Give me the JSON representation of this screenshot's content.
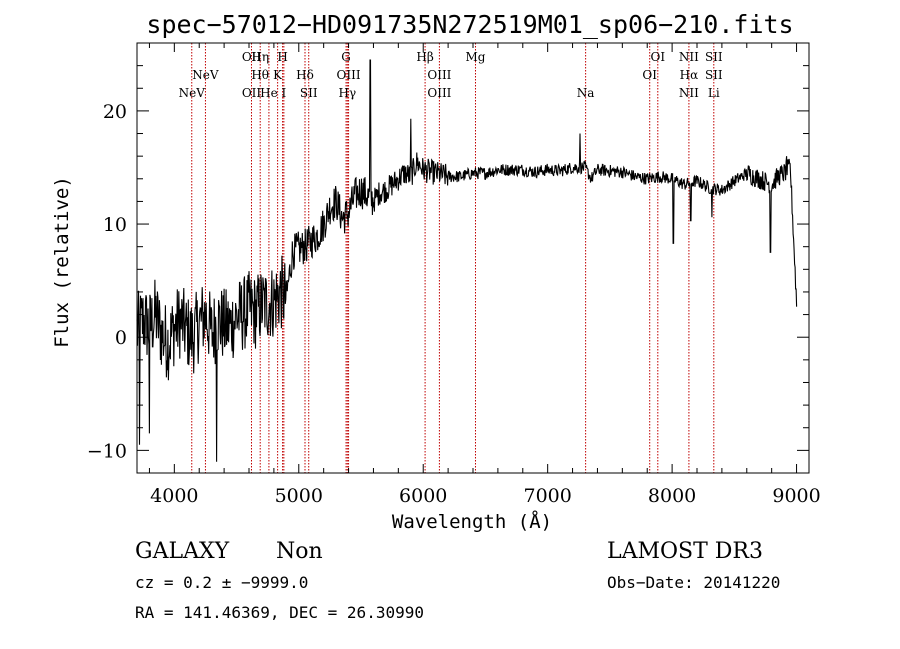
{
  "chart_data": {
    "type": "line",
    "title": "spec−57012−HD091735N272519M01_sp06−210.fits",
    "xlabel": "Wavelength (Å)",
    "ylabel": "Flux (relative)",
    "xlim": [
      3700,
      9100
    ],
    "ylim": [
      -12,
      26
    ],
    "xticks": [
      4000,
      5000,
      6000,
      7000,
      8000,
      9000
    ],
    "xtick_labels": [
      "4000",
      "5000",
      "6000",
      "7000",
      "8000",
      "9000"
    ],
    "yticks": [
      -10,
      0,
      10,
      20
    ],
    "ytick_labels": [
      "−10",
      "0",
      "10",
      "20"
    ],
    "spectrum_anchors": {
      "x": [
        3700,
        3750,
        3800,
        3850,
        3900,
        3950,
        4000,
        4050,
        4100,
        4150,
        4200,
        4250,
        4300,
        4350,
        4400,
        4450,
        4500,
        4550,
        4600,
        4650,
        4700,
        4750,
        4800,
        4850,
        4900,
        4950,
        5000,
        5050,
        5100,
        5150,
        5200,
        5250,
        5300,
        5350,
        5400,
        5450,
        5500,
        5550,
        5600,
        5650,
        5700,
        5750,
        5800,
        5850,
        5900,
        5950,
        6000,
        6100,
        6200,
        6300,
        6400,
        6500,
        6600,
        6700,
        6800,
        6900,
        7000,
        7100,
        7200,
        7300,
        7350,
        7400,
        7500,
        7600,
        7700,
        7800,
        7900,
        8000,
        8100,
        8200,
        8300,
        8400,
        8500,
        8600,
        8700,
        8800,
        8850,
        8900,
        8950,
        9000
      ],
      "y": [
        0.5,
        1.5,
        0.8,
        2.0,
        0.2,
        -0.5,
        0.8,
        1.5,
        0.5,
        0.0,
        1.2,
        2.0,
        0.3,
        1.5,
        1.0,
        1.0,
        1.8,
        2.0,
        2.5,
        2.2,
        2.8,
        3.0,
        3.2,
        4.0,
        3.5,
        7.5,
        7.8,
        8.0,
        8.5,
        9.0,
        10.0,
        11.5,
        12.0,
        10.5,
        11.0,
        12.5,
        13.0,
        12.5,
        12.0,
        12.8,
        13.0,
        13.5,
        14.0,
        14.5,
        14.2,
        15.5,
        14.8,
        14.5,
        14.2,
        14.2,
        14.5,
        14.5,
        14.8,
        14.8,
        14.8,
        14.6,
        14.8,
        14.7,
        15.0,
        15.0,
        14.0,
        14.8,
        14.7,
        14.6,
        14.2,
        14.0,
        14.2,
        14.0,
        13.5,
        13.8,
        13.2,
        13.0,
        13.8,
        14.5,
        14.0,
        13.5,
        14.2,
        14.5,
        15.0,
        3.0
      ],
      "features": [
        {
          "x": 4340,
          "y": -11.0
        },
        {
          "x": 3720,
          "y": -9.5
        },
        {
          "x": 3800,
          "y": -8.5
        },
        {
          "x": 5575,
          "y": 24.5
        },
        {
          "x": 5900,
          "y": 19.3
        },
        {
          "x": 7260,
          "y": 18.0
        },
        {
          "x": 8010,
          "y": 8.3
        },
        {
          "x": 8150,
          "y": 10.3
        },
        {
          "x": 8320,
          "y": 10.6
        },
        {
          "x": 8790,
          "y": 7.5
        },
        {
          "x": 8920,
          "y": 16.0
        }
      ]
    },
    "line_color": "#000000",
    "marker_color": "#c00000",
    "line_markers": [
      {
        "wave": 4140,
        "label": "NeV",
        "row": 2
      },
      {
        "wave": 4250,
        "label": "NeV",
        "row": 1
      },
      {
        "wave": 4620,
        "label": "OII",
        "row": 0
      },
      {
        "wave": 4620,
        "label": "OII",
        "row": 2
      },
      {
        "wave": 4690,
        "label": "Hη",
        "row": 0
      },
      {
        "wave": 4690,
        "label": "Hθ",
        "row": 1
      },
      {
        "wave": 4760,
        "label": "He",
        "row": 2
      },
      {
        "wave": 4830,
        "label": "K",
        "row": 1
      },
      {
        "wave": 4870,
        "label": "H",
        "row": 0
      },
      {
        "wave": 4880,
        "label": "I",
        "row": 2
      },
      {
        "wave": 5050,
        "label": "Hδ",
        "row": 1
      },
      {
        "wave": 5080,
        "label": "SII",
        "row": 2
      },
      {
        "wave": 5380,
        "label": "G",
        "row": 0
      },
      {
        "wave": 5400,
        "label": "OIII",
        "row": 1
      },
      {
        "wave": 5390,
        "label": "Hγ",
        "row": 2
      },
      {
        "wave": 6015,
        "label": "Hβ",
        "row": 0
      },
      {
        "wave": 6130,
        "label": "OIII",
        "row": 1
      },
      {
        "wave": 6130,
        "label": "OIII",
        "row": 2
      },
      {
        "wave": 6420,
        "label": "Mg",
        "row": 0
      },
      {
        "wave": 7305,
        "label": "Na",
        "row": 2
      },
      {
        "wave": 7885,
        "label": "OI",
        "row": 0
      },
      {
        "wave": 7820,
        "label": "OI",
        "row": 1
      },
      {
        "wave": 8135,
        "label": "NII",
        "row": 0
      },
      {
        "wave": 8135,
        "label": "Hα",
        "row": 1
      },
      {
        "wave": 8135,
        "label": "NII",
        "row": 2
      },
      {
        "wave": 8335,
        "label": "SII",
        "row": 0
      },
      {
        "wave": 8335,
        "label": "SII",
        "row": 1
      },
      {
        "wave": 8335,
        "label": "Li",
        "row": 2
      }
    ]
  },
  "info": {
    "class": "GALAXY",
    "subclass": "Non",
    "survey": "LAMOST DR3",
    "cz": "cz = 0.2 ± −9999.0",
    "obs_date": "Obs−Date: 20141220",
    "radec": "RA = 141.46369, DEC =  26.30990"
  }
}
